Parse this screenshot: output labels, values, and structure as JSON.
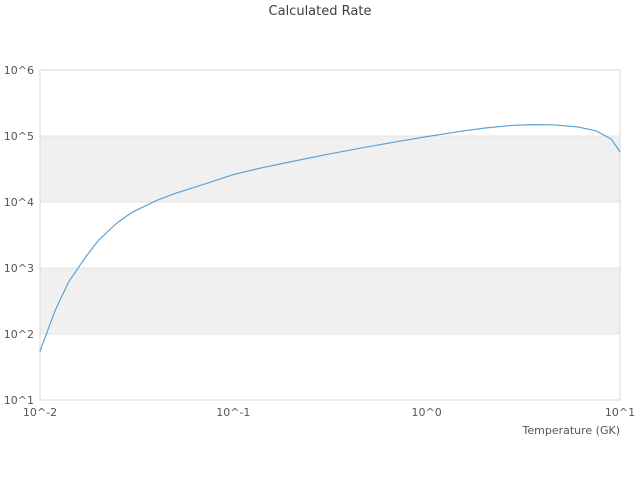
{
  "chart_data": {
    "type": "line",
    "title": "Calculated Rate",
    "xlabel": "Temperature (GK)",
    "ylabel": "",
    "x_scale": "log",
    "y_scale": "log",
    "x_range": [
      0.01,
      10
    ],
    "y_range": [
      10,
      1000000
    ],
    "x_tick_labels": [
      "10^-2",
      "10^-1",
      "10^0",
      "10^1"
    ],
    "x_tick_values": [
      0.01,
      0.1,
      1,
      10
    ],
    "y_tick_labels": [
      "10^1",
      "10^2",
      "10^3",
      "10^4",
      "10^5",
      "10^6"
    ],
    "y_tick_values": [
      10,
      100,
      1000,
      10000,
      100000,
      1000000
    ],
    "legend": "none",
    "grid": "horizontal-alternating-bands",
    "series": [
      {
        "name": "calculated-rate",
        "color": "#5ba3d6",
        "x": [
          0.01,
          0.012,
          0.014,
          0.017,
          0.02,
          0.025,
          0.03,
          0.04,
          0.05,
          0.07,
          0.1,
          0.14,
          0.2,
          0.3,
          0.45,
          0.7,
          1.0,
          1.5,
          2.0,
          2.8,
          3.5,
          4.5,
          6.0,
          7.5,
          9.0,
          10.0
        ],
        "y": [
          55,
          230,
          600,
          1400,
          2600,
          4800,
          7000,
          10500,
          13500,
          18500,
          26000,
          33000,
          41000,
          52000,
          65000,
          82000,
          98000,
          118000,
          132000,
          145000,
          149000,
          148000,
          138000,
          120000,
          90000,
          58000
        ]
      }
    ],
    "colors": {
      "band": "#f0f0f0",
      "gridline": "#e4e4e4",
      "border": "#d9d9d9",
      "tick_text": "#555555",
      "title_text": "#3f3f3f"
    }
  }
}
